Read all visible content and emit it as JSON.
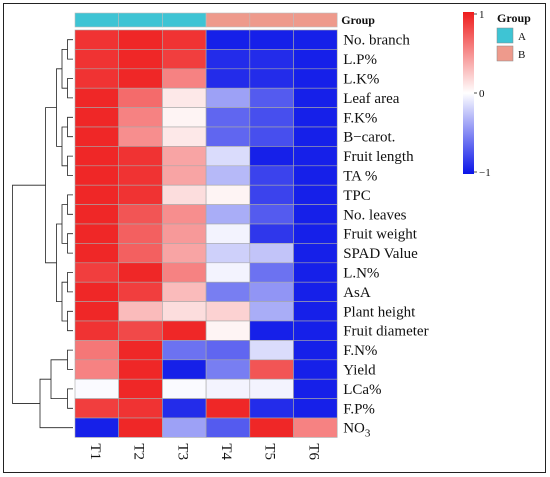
{
  "chart_data": {
    "type": "heatmap",
    "columns": [
      "T1",
      "T2",
      "T3",
      "T4",
      "T5",
      "T6"
    ],
    "rows": [
      "No. branch",
      "L.P%",
      "L.K%",
      "Leaf area",
      "F.K%",
      "B−carot.",
      "Fruit length",
      "TA %",
      "TPC",
      "No. leaves",
      "Fruit weight",
      "SPAD Value",
      "L.N%",
      "AsA",
      "Plant height",
      "Fruit diameter",
      "F.N%",
      "Yield",
      "LCa%",
      "F.P%"
    ],
    "last_row_base": "NO",
    "last_row_subscript": "3",
    "values": [
      [
        0.9,
        0.95,
        0.9,
        -0.95,
        -0.95,
        -0.95
      ],
      [
        0.9,
        0.95,
        0.85,
        -0.9,
        -0.9,
        -0.95
      ],
      [
        0.9,
        0.95,
        0.55,
        -0.9,
        -0.9,
        -0.95
      ],
      [
        0.95,
        0.65,
        0.1,
        -0.4,
        -0.7,
        -0.95
      ],
      [
        0.95,
        0.55,
        0.05,
        -0.65,
        -0.75,
        -0.95
      ],
      [
        0.95,
        0.5,
        0.1,
        -0.65,
        -0.75,
        -0.95
      ],
      [
        0.95,
        0.9,
        0.4,
        -0.15,
        -0.95,
        -0.95
      ],
      [
        0.95,
        0.9,
        0.4,
        -0.3,
        -0.8,
        -0.95
      ],
      [
        0.95,
        0.9,
        0.15,
        0.05,
        -0.8,
        -0.95
      ],
      [
        0.95,
        0.75,
        0.5,
        -0.35,
        -0.7,
        -0.95
      ],
      [
        0.95,
        0.7,
        0.45,
        -0.05,
        -0.85,
        -0.95
      ],
      [
        0.95,
        0.7,
        0.4,
        -0.2,
        -0.25,
        -0.95
      ],
      [
        0.85,
        0.95,
        0.55,
        -0.05,
        -0.6,
        -0.95
      ],
      [
        0.95,
        0.85,
        0.3,
        -0.55,
        -0.45,
        -0.95
      ],
      [
        0.95,
        0.3,
        0.15,
        0.2,
        -0.35,
        -0.95
      ],
      [
        0.9,
        0.8,
        0.95,
        0.05,
        -0.95,
        -0.95
      ],
      [
        0.6,
        0.95,
        -0.6,
        -0.65,
        -0.15,
        -0.95
      ],
      [
        0.55,
        0.95,
        -0.95,
        -0.55,
        0.75,
        -0.95
      ],
      [
        -0.02,
        0.95,
        -0.02,
        -0.05,
        -0.05,
        -0.95
      ],
      [
        0.85,
        0.9,
        -0.9,
        0.95,
        -0.9,
        -0.95
      ],
      [
        -0.95,
        0.95,
        -0.4,
        -0.7,
        0.95,
        0.55
      ]
    ],
    "group": {
      "label": "Group",
      "assignment": [
        "A",
        "A",
        "A",
        "B",
        "B",
        "B"
      ],
      "legend_title": "Group",
      "legend_entries": [
        "A",
        "B"
      ],
      "colors": {
        "A": "#3ec4d4",
        "B": "#ee9a8c"
      }
    },
    "color_scale": {
      "min": -1,
      "mid": 0,
      "max": 1,
      "tick_labels": [
        "1",
        "0",
        "−1"
      ],
      "colors": {
        "low": "#0a14e8",
        "mid": "#ffffff",
        "high": "#ee1c1c"
      }
    },
    "row_dendrogram": true
  }
}
